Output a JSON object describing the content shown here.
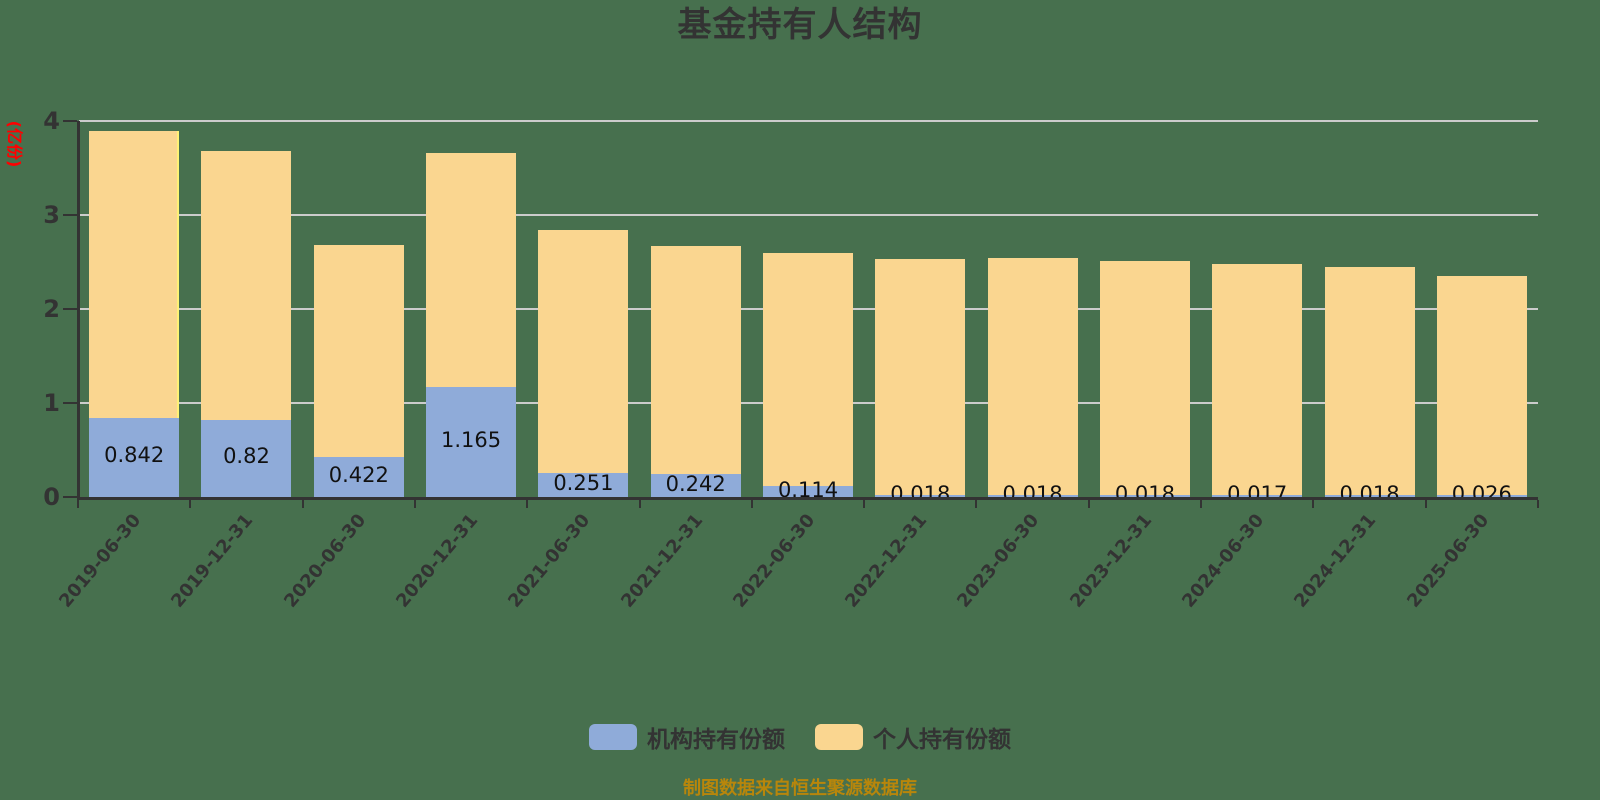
{
  "title": "基金持有人结构",
  "y_axis": {
    "name": "(亿份)",
    "ticks": [
      "0",
      "1",
      "2",
      "3",
      "4"
    ],
    "min": 0,
    "max": 4
  },
  "x_axis": {
    "labels": [
      "2019-06-30",
      "2019-12-31",
      "2020-06-30",
      "2020-12-31",
      "2021-06-30",
      "2021-12-31",
      "2022-06-30",
      "2022-12-31",
      "2023-06-30",
      "2023-12-31",
      "2024-06-30",
      "2024-12-31",
      "2025-06-30"
    ]
  },
  "legend": {
    "items": [
      {
        "label": "机构持有份额"
      },
      {
        "label": "个人持有份额"
      }
    ]
  },
  "footer": "制图数据来自恒生聚源数据库",
  "colors": {
    "background": "#47704E",
    "institutional_bar": "#8FABD9",
    "individual_bar": "#FAD690",
    "gridline": "#CCCCCC",
    "axis": "#333333",
    "title_text": "#333333",
    "value_label": "#111111",
    "x_label": "#333333",
    "y_tick_label": "#333333",
    "y_axis_name": "#FF0000",
    "footer_text": "#B8860B",
    "legend_label": "#333333",
    "first_bar_highlight": "#FFF176"
  },
  "chart_data": {
    "type": "bar",
    "stacked": true,
    "title": "基金持有人结构",
    "categories": [
      "2019-06-30",
      "2019-12-31",
      "2020-06-30",
      "2020-12-31",
      "2021-06-30",
      "2021-12-31",
      "2022-06-30",
      "2022-12-31",
      "2023-06-30",
      "2023-12-31",
      "2024-06-30",
      "2024-12-31",
      "2025-06-30"
    ],
    "series": [
      {
        "name": "机构持有份额",
        "color": "#8FABD9",
        "values": [
          0.842,
          0.82,
          0.422,
          1.165,
          0.251,
          0.242,
          0.114,
          0.018,
          0.018,
          0.018,
          0.017,
          0.018,
          0.026
        ],
        "data_labels": [
          "0.842",
          "0.82",
          "0.422",
          "1.165",
          "0.251",
          "0.242",
          "0.114",
          "0.018",
          "0.018",
          "0.018",
          "0.017",
          "0.018",
          "0.026"
        ]
      },
      {
        "name": "个人持有份额",
        "color": "#FAD690",
        "values": [
          3.048,
          2.86,
          2.255,
          2.495,
          2.589,
          2.423,
          2.482,
          2.514,
          2.525,
          2.492,
          2.462,
          2.429,
          2.33
        ]
      }
    ],
    "ylim": [
      0,
      4
    ],
    "ylabel": "(亿份)",
    "grid": true,
    "legend_position": "bottom"
  }
}
